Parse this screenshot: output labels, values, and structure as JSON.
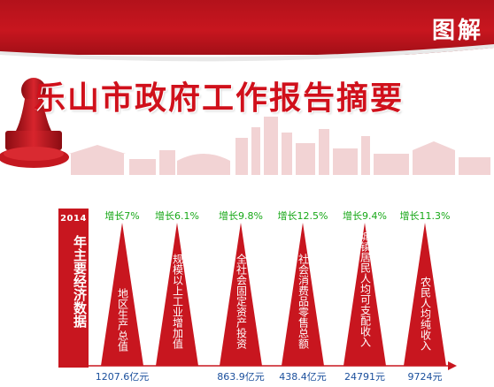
{
  "header": {
    "badge": "图解",
    "title": "乐山市政府工作报告摘要"
  },
  "summary": {
    "year": "2014",
    "heading": "年主要经济数据"
  },
  "colors": {
    "brand_red": "#c8161f",
    "growth_green": "#18a818",
    "value_blue": "#1a4f9c"
  },
  "chart_data": {
    "type": "bar",
    "categories": [
      "地区生产总值",
      "规模以上工业增加值",
      "全社会固定资产投资",
      "社会消费品零售总额",
      "城镇居民人均可支配收入",
      "农民人均纯收入"
    ],
    "growth_labels": [
      "增长7%",
      "增长6.1%",
      "增长9.8%",
      "增长12.5%",
      "增长9.4%",
      "增长11.3%"
    ],
    "value_labels": [
      "1207.6亿元",
      "",
      "863.9亿元",
      "438.4亿元",
      "24791元",
      "9724元"
    ]
  }
}
